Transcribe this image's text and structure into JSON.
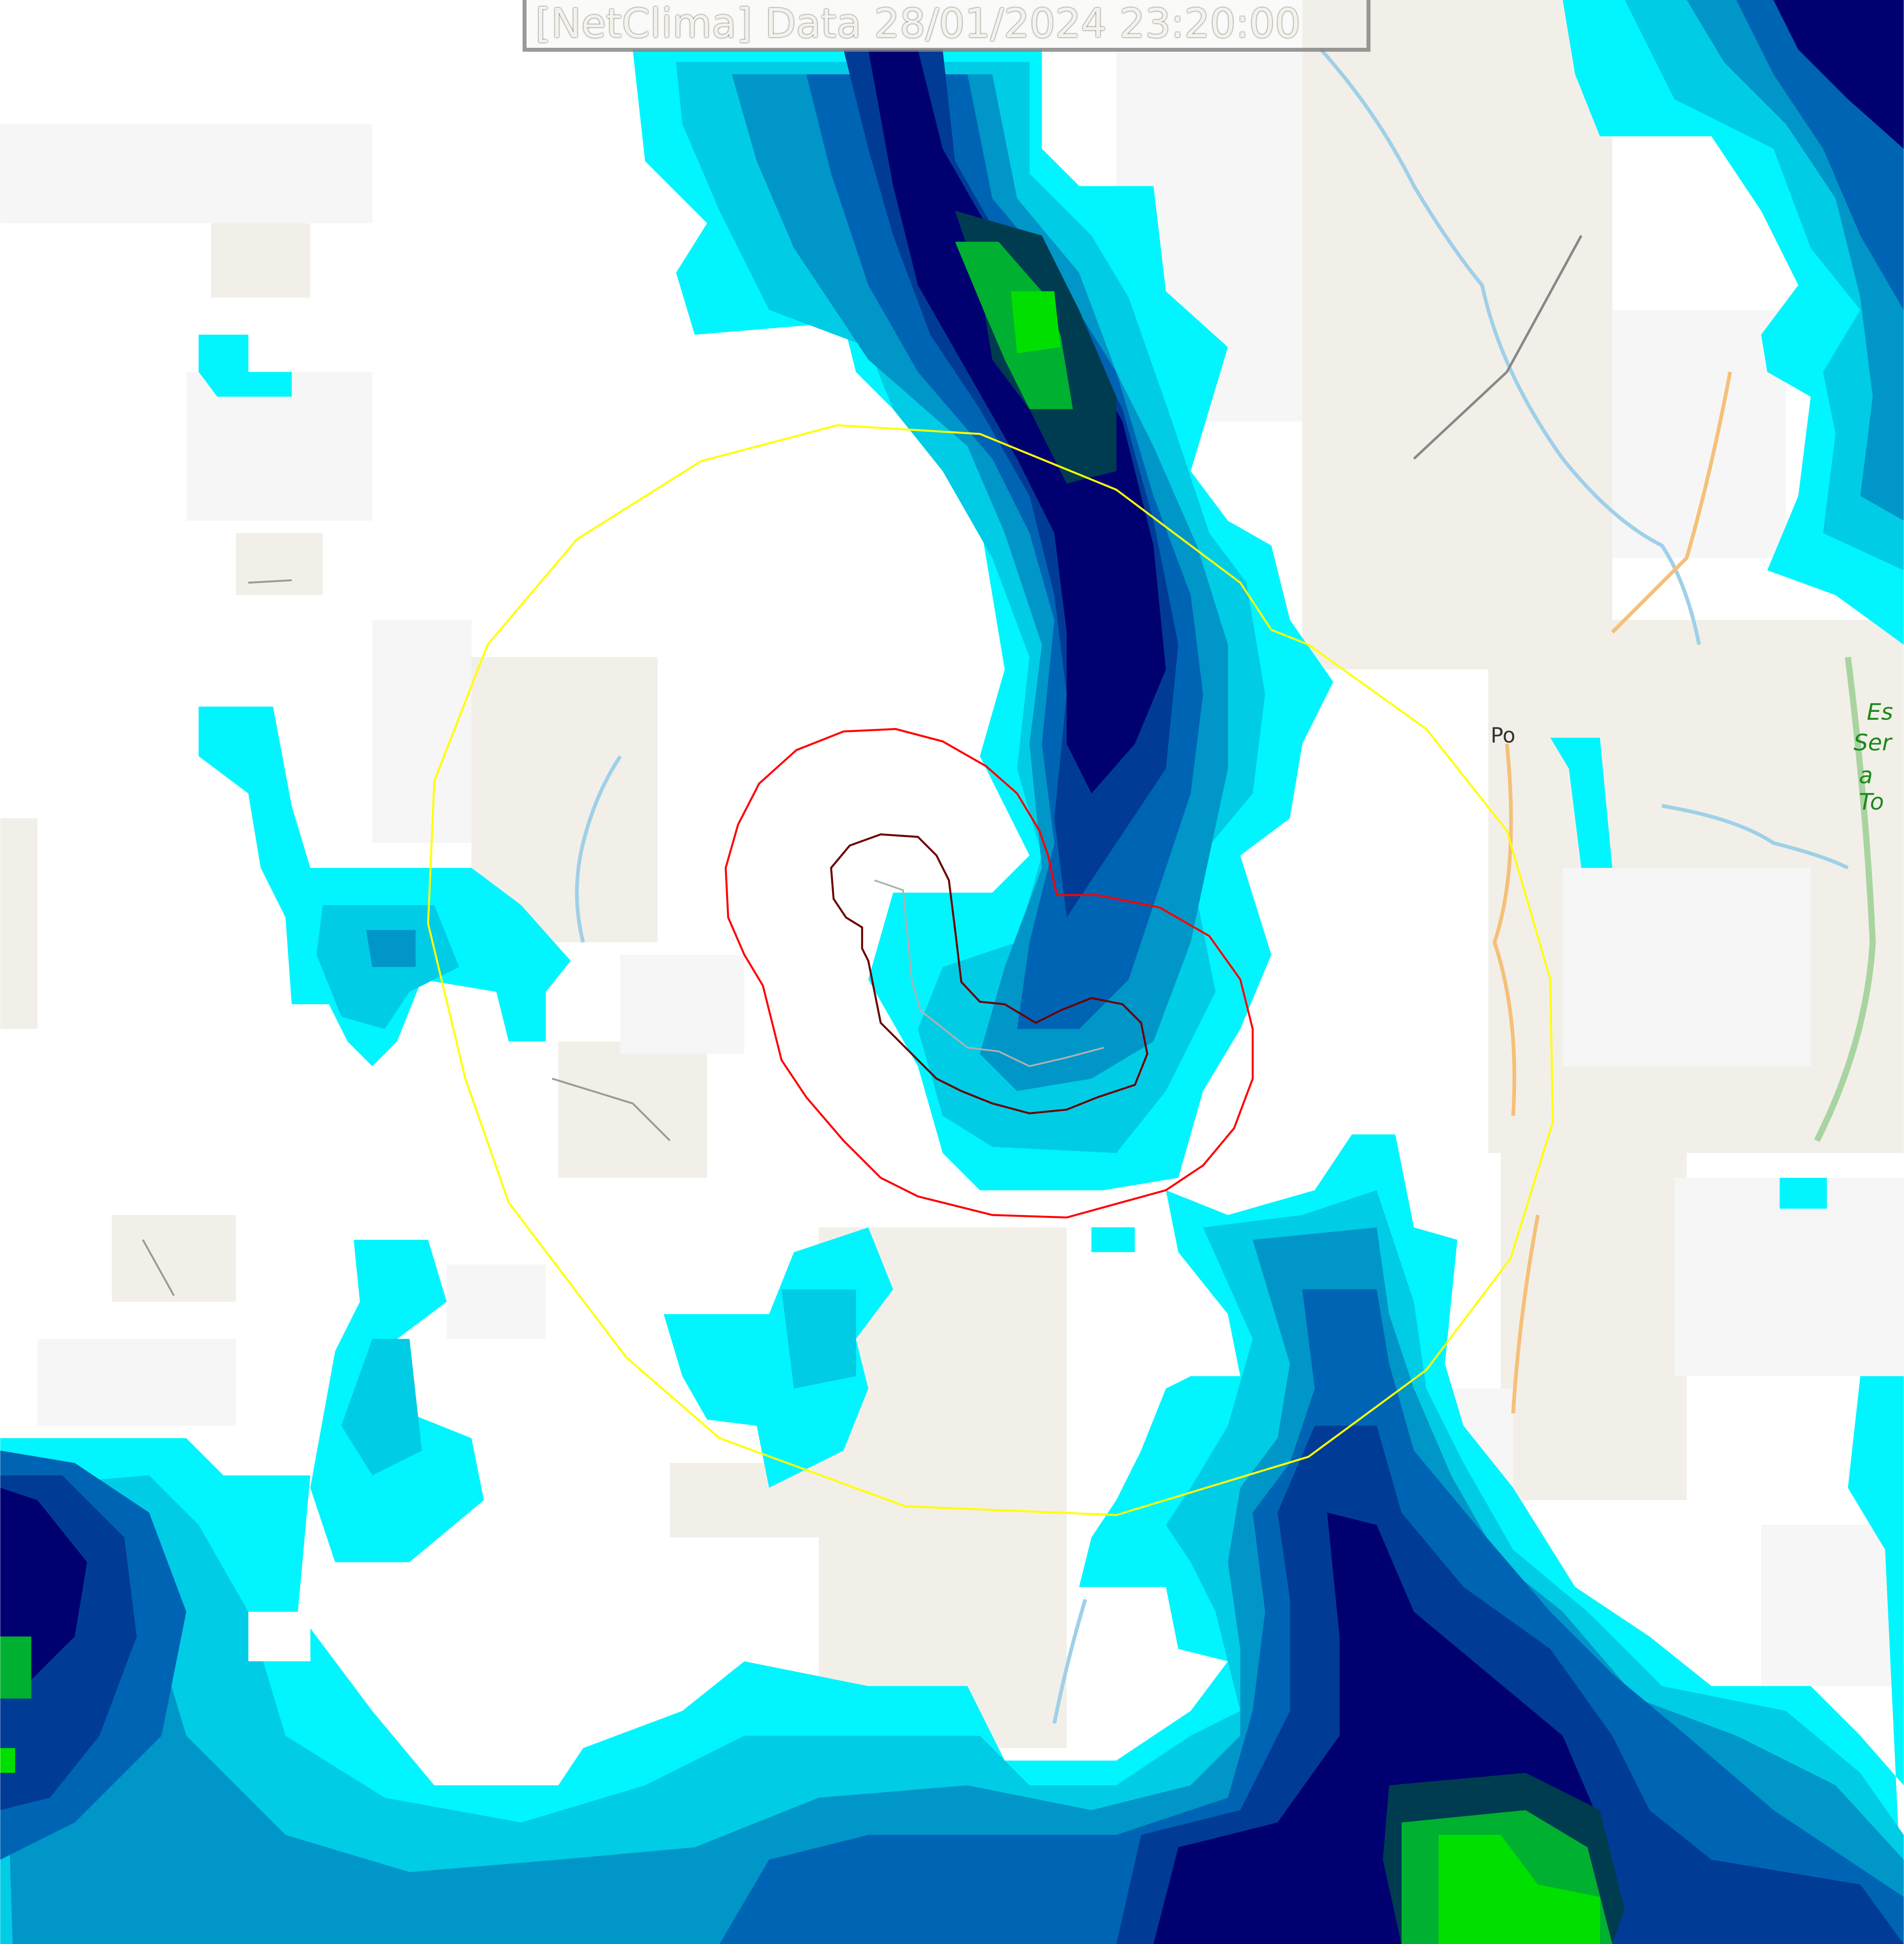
{
  "title": "[NetClima] Data 28/01/2024 23:20:00",
  "map": {
    "place_labels": [
      "Po",
      "Es",
      "Ser",
      "a To"
    ],
    "contour_colors": {
      "outer": "#ffff00",
      "middle": "#ff0000",
      "inner": "#8b0000",
      "track": "#b0b0b0"
    },
    "radar_palette": [
      "#00f5ff",
      "#00cce6",
      "#0096c8",
      "#0064b4",
      "#003c96",
      "#000070",
      "#003c50",
      "#00b030",
      "#00e000"
    ],
    "land_color": "#f2efe9",
    "water_color": "#9fd0e8"
  }
}
